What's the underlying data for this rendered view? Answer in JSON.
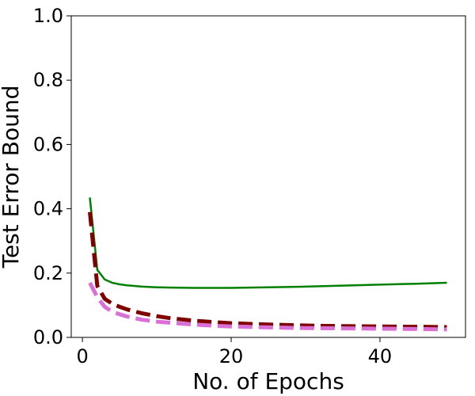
{
  "chart_data": {
    "type": "line",
    "title": "",
    "xlabel": "No. of Epochs",
    "ylabel": "Test Error Bound",
    "xlim": [
      -1.5,
      51.5
    ],
    "ylim": [
      0.0,
      1.0
    ],
    "x_ticks": [
      0,
      20,
      40
    ],
    "y_ticks": [
      0.0,
      0.2,
      0.4,
      0.6,
      0.8,
      1.0
    ],
    "x_tick_labels": [
      "0",
      "20",
      "40"
    ],
    "y_tick_labels": [
      "0.0",
      "0.2",
      "0.4",
      "0.6",
      "0.8",
      "1.0"
    ],
    "grid": false,
    "legend": "none",
    "x": [
      1,
      2,
      3,
      4,
      5,
      6,
      8,
      10,
      12,
      15,
      18,
      20,
      25,
      30,
      35,
      40,
      45,
      49
    ],
    "series": [
      {
        "color": "#008000",
        "style": "solid",
        "values": [
          0.435,
          0.21,
          0.18,
          0.17,
          0.165,
          0.162,
          0.158,
          0.156,
          0.155,
          0.154,
          0.154,
          0.154,
          0.156,
          0.158,
          0.161,
          0.164,
          0.167,
          0.17
        ]
      },
      {
        "color": "#800000",
        "style": "dashed",
        "values": [
          0.39,
          0.16,
          0.12,
          0.105,
          0.095,
          0.087,
          0.075,
          0.066,
          0.059,
          0.052,
          0.047,
          0.044,
          0.04,
          0.037,
          0.035,
          0.034,
          0.033,
          0.032
        ]
      },
      {
        "color": "#DA70D6",
        "style": "dashed",
        "values": [
          0.17,
          0.125,
          0.095,
          0.08,
          0.072,
          0.065,
          0.055,
          0.049,
          0.045,
          0.04,
          0.036,
          0.034,
          0.031,
          0.029,
          0.028,
          0.027,
          0.026,
          0.025
        ]
      }
    ]
  }
}
